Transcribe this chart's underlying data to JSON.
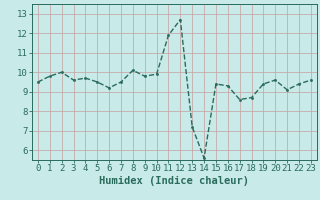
{
  "x": [
    0,
    1,
    2,
    3,
    4,
    5,
    6,
    7,
    8,
    9,
    10,
    11,
    12,
    13,
    14,
    15,
    16,
    17,
    18,
    19,
    20,
    21,
    22,
    23
  ],
  "y": [
    9.5,
    9.8,
    10.0,
    9.6,
    9.7,
    9.5,
    9.2,
    9.5,
    10.1,
    9.8,
    9.9,
    11.9,
    12.7,
    7.2,
    5.6,
    9.4,
    9.3,
    8.6,
    8.7,
    9.4,
    9.6,
    9.1,
    9.4,
    9.6
  ],
  "xlabel": "Humidex (Indice chaleur)",
  "xlim": [
    -0.5,
    23.5
  ],
  "ylim": [
    5.5,
    13.5
  ],
  "yticks": [
    6,
    7,
    8,
    9,
    10,
    11,
    12,
    13
  ],
  "xticks": [
    0,
    1,
    2,
    3,
    4,
    5,
    6,
    7,
    8,
    9,
    10,
    11,
    12,
    13,
    14,
    15,
    16,
    17,
    18,
    19,
    20,
    21,
    22,
    23
  ],
  "line_color": "#2a6b5e",
  "bg_color": "#c8eae8",
  "grid_color": "#c4a0a0",
  "linestyle": "--",
  "linewidth": 1.0,
  "markersize": 3.0,
  "tick_fontsize": 6.5,
  "xlabel_fontsize": 7.5
}
